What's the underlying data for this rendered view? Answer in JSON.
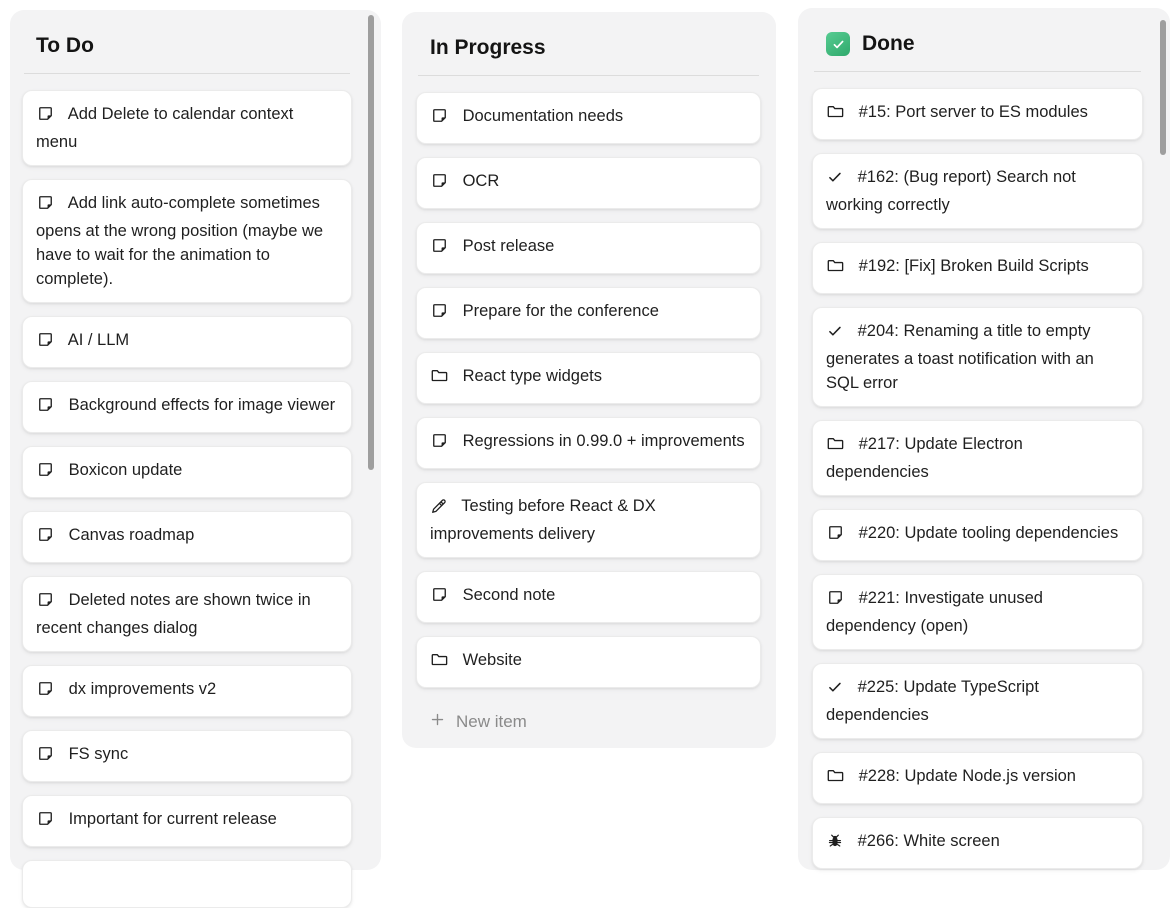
{
  "board": {
    "columns": [
      {
        "id": "todo",
        "title": "To Do",
        "header_icon": null,
        "cards": [
          {
            "icon": "note",
            "text": "Add Delete to calendar context menu"
          },
          {
            "icon": "note",
            "text": "Add link auto-complete sometimes opens at the wrong position (maybe we have to wait for the animation to complete)."
          },
          {
            "icon": "note",
            "text": "AI / LLM"
          },
          {
            "icon": "note",
            "text": "Background effects for image viewer"
          },
          {
            "icon": "note",
            "text": "Boxicon update"
          },
          {
            "icon": "note",
            "text": "Canvas roadmap"
          },
          {
            "icon": "note",
            "text": "Deleted notes are shown twice in recent changes dialog"
          },
          {
            "icon": "note",
            "text": "dx improvements v2"
          },
          {
            "icon": "note",
            "text": "FS sync"
          },
          {
            "icon": "note",
            "text": "Important for current release"
          }
        ],
        "partial_card_at_bottom": true,
        "has_scrollbar": true,
        "new_item_label": null
      },
      {
        "id": "in-progress",
        "title": "In Progress",
        "header_icon": null,
        "cards": [
          {
            "icon": "note",
            "text": "Documentation needs"
          },
          {
            "icon": "note",
            "text": "OCR"
          },
          {
            "icon": "note",
            "text": "Post release"
          },
          {
            "icon": "note",
            "text": "Prepare for the conference"
          },
          {
            "icon": "folder",
            "text": "React type widgets"
          },
          {
            "icon": "note",
            "text": "Regressions in 0.99.0 + improvements"
          },
          {
            "icon": "pencil",
            "text": "Testing before React & DX improvements delivery"
          },
          {
            "icon": "note",
            "text": "Second note"
          },
          {
            "icon": "folder",
            "text": "Website"
          }
        ],
        "partial_card_at_bottom": false,
        "has_scrollbar": false,
        "new_item_label": "New item"
      },
      {
        "id": "done",
        "title": "Done",
        "header_icon": "green-checkbox",
        "cards": [
          {
            "icon": "folder",
            "text": "#15: Port server to ES modules"
          },
          {
            "icon": "check",
            "text": "#162: (Bug report) Search not working correctly"
          },
          {
            "icon": "folder",
            "text": "#192: [Fix] Broken Build Scripts"
          },
          {
            "icon": "check",
            "text": "#204: Renaming a title to empty generates a toast notification with an SQL error"
          },
          {
            "icon": "folder",
            "text": "#217: Update Electron dependencies"
          },
          {
            "icon": "note",
            "text": "#220: Update tooling dependencies"
          },
          {
            "icon": "note",
            "text": "#221: Investigate unused dependency (open)"
          },
          {
            "icon": "check",
            "text": "#225: Update TypeScript dependencies"
          },
          {
            "icon": "folder",
            "text": "#228: Update Node.js version"
          },
          {
            "icon": "bug",
            "text": "#266: White screen"
          }
        ],
        "partial_card_at_bottom": false,
        "has_scrollbar": true,
        "new_item_label": null
      }
    ]
  },
  "colors": {
    "accent_green_top": "#57cc92",
    "accent_green_bottom": "#2fa96c",
    "column_background": "#f3f3f4",
    "card_background": "#ffffff",
    "text": "#1f1f1f",
    "muted_text": "#8a8a8a",
    "scrollbar_thumb": "#9e9e9e"
  }
}
